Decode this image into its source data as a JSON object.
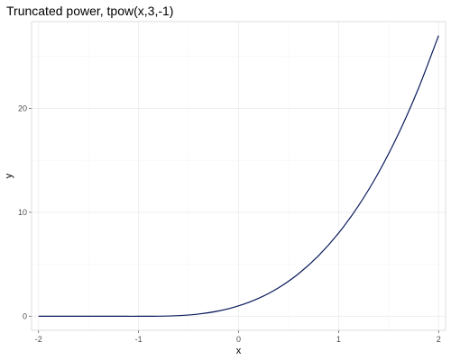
{
  "chart_data": {
    "type": "line",
    "title": "Truncated power, tpow(x,3,-1)",
    "xlabel": "x",
    "ylabel": "y",
    "xlim": [
      -2.07,
      2.07
    ],
    "ylim": [
      -1.35,
      28.35
    ],
    "x_ticks": [
      -2,
      -1,
      0,
      1,
      2
    ],
    "y_ticks": [
      0,
      10,
      20
    ],
    "grid": true,
    "series": [
      {
        "color": "#0a1a5c",
        "x": [
          -2.0,
          -1.8,
          -1.6,
          -1.4,
          -1.2,
          -1.0,
          -0.8,
          -0.6,
          -0.4,
          -0.2,
          0.0,
          0.2,
          0.4,
          0.6,
          0.8,
          1.0,
          1.2,
          1.4,
          1.6,
          1.8,
          2.0
        ],
        "y": [
          0,
          0,
          0,
          0,
          0,
          0,
          0.008,
          0.064,
          0.216,
          0.512,
          1.0,
          1.728,
          2.744,
          4.096,
          5.832,
          8.0,
          10.648,
          13.824,
          17.576,
          21.952,
          27.0
        ]
      }
    ]
  }
}
